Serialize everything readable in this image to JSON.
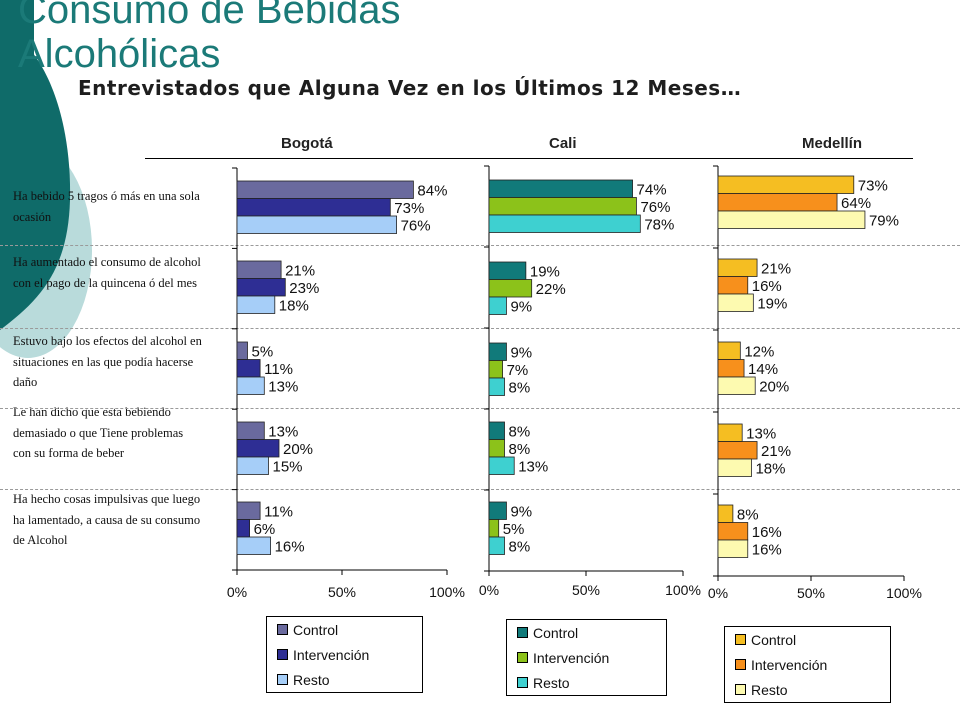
{
  "title": "Consumo de Bebidas Alcohólicas",
  "subtitle": "Entrevistados que Alguna Vez en los Últimos 12 Meses…",
  "questions": [
    "Ha bebido 5 tragos ó más en una sola ocasión",
    "Ha aumentado el consumo de alcohol con el pago de la quincena ó del mes",
    "Estuvo bajo los efectos del alcohol en situaciones en las que podía hacerse daño",
    "Le han dicho que esta bebiendo demasiado o que Tiene problemas con su forma de beber",
    "Ha hecho cosas impulsivas que luego ha lamentado, a causa de su consumo de Alcohol"
  ],
  "chart_data": [
    {
      "type": "bar",
      "orientation": "horizontal",
      "title": "Bogotá",
      "categories": [
        "Ha bebido 5 tragos ó más en una sola ocasión",
        "Ha aumentado el consumo de alcohol con el pago de la quincena ó del mes",
        "Estuvo bajo los efectos del alcohol en situaciones en las que podía hacerse daño",
        "Le han dicho que esta bebiendo demasiado o que Tiene problemas con su forma de beber",
        "Ha hecho cosas impulsivas que luego ha lamentado, a causa de su consumo de Alcohol"
      ],
      "series": [
        {
          "name": "Control",
          "values": [
            84,
            21,
            5,
            13,
            11
          ],
          "color": "#6a6a9e"
        },
        {
          "name": "Intervención",
          "values": [
            73,
            23,
            11,
            20,
            6
          ],
          "color": "#2e2e94"
        },
        {
          "name": "Resto",
          "values": [
            76,
            18,
            13,
            15,
            16
          ],
          "color": "#a6cef8"
        }
      ],
      "x_ticks": [
        "0%",
        "50%",
        "100%"
      ],
      "xlim": [
        0,
        100
      ],
      "value_suffix": "%",
      "legend_position": "bottom"
    },
    {
      "type": "bar",
      "orientation": "horizontal",
      "title": "Cali",
      "categories": [
        "Ha bebido 5 tragos ó más en una sola ocasión",
        "Ha aumentado el consumo de alcohol con el pago de la quincena ó del mes",
        "Estuvo bajo los efectos del alcohol en situaciones en las que podía hacerse daño",
        "Le han dicho que esta bebiendo demasiado o que Tiene problemas con su forma de beber",
        "Ha hecho cosas impulsivas que luego ha lamentado, a causa de su consumo de Alcohol"
      ],
      "series": [
        {
          "name": "Control",
          "values": [
            74,
            19,
            9,
            8,
            9
          ],
          "color": "#117a7a"
        },
        {
          "name": "Intervención",
          "values": [
            76,
            22,
            7,
            8,
            5
          ],
          "color": "#8cc21a"
        },
        {
          "name": "Resto",
          "values": [
            78,
            9,
            8,
            13,
            8
          ],
          "color": "#3ed0d0"
        }
      ],
      "x_ticks": [
        "0%",
        "50%",
        "100%"
      ],
      "xlim": [
        0,
        100
      ],
      "value_suffix": "%",
      "legend_position": "bottom"
    },
    {
      "type": "bar",
      "orientation": "horizontal",
      "title": "Medellín",
      "categories": [
        "Ha bebido 5 tragos ó más en una sola ocasión",
        "Ha aumentado el consumo de alcohol con el pago de la quincena ó del mes",
        "Estuvo bajo los efectos del alcohol en situaciones en las que podía hacerse daño",
        "Le han dicho que esta bebiendo demasiado o que Tiene problemas con su forma de beber",
        "Ha hecho cosas impulsivas que luego ha lamentado, a causa de su consumo de Alcohol"
      ],
      "series": [
        {
          "name": "Control",
          "values": [
            73,
            21,
            12,
            13,
            8
          ],
          "color": "#f5be22"
        },
        {
          "name": "Intervención",
          "values": [
            64,
            16,
            14,
            21,
            16
          ],
          "color": "#f7901c"
        },
        {
          "name": "Resto",
          "values": [
            79,
            19,
            20,
            18,
            16
          ],
          "color": "#fdfab0"
        }
      ],
      "x_ticks": [
        "0%",
        "50%",
        "100%"
      ],
      "xlim": [
        0,
        100
      ],
      "value_suffix": "%",
      "legend_position": "bottom"
    }
  ]
}
